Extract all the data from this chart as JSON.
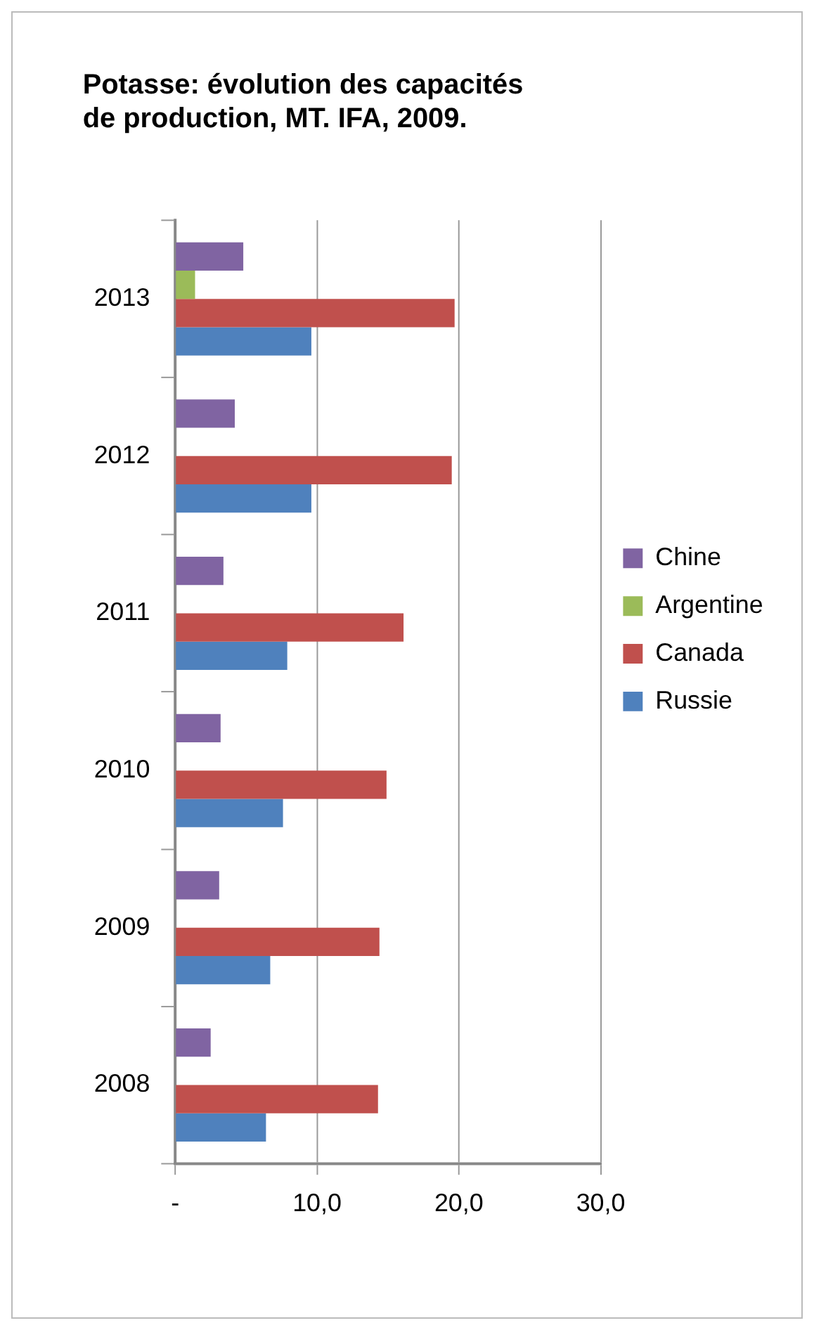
{
  "chart_data": {
    "type": "bar",
    "orientation": "horizontal",
    "title": "Potasse: évolution des capacités de production, MT. IFA, 2009.",
    "categories": [
      "2013",
      "2012",
      "2011",
      "2010",
      "2009",
      "2008"
    ],
    "series": [
      {
        "name": "Chine",
        "color": "#8064a2",
        "values": [
          4.8,
          4.2,
          3.4,
          3.2,
          3.1,
          2.5
        ]
      },
      {
        "name": "Argentine",
        "color": "#9bbb59",
        "values": [
          1.4,
          null,
          null,
          null,
          null,
          null
        ]
      },
      {
        "name": "Canada",
        "color": "#c0504d",
        "values": [
          19.7,
          19.5,
          16.1,
          14.9,
          14.4,
          14.3
        ]
      },
      {
        "name": "Russie",
        "color": "#4f81bd",
        "values": [
          9.6,
          9.6,
          7.9,
          7.6,
          6.7,
          6.4
        ]
      }
    ],
    "xlim": [
      0,
      30
    ],
    "xticks": [
      {
        "value": 0,
        "label": "-"
      },
      {
        "value": 10,
        "label": "10,0"
      },
      {
        "value": 20,
        "label": "20,0"
      },
      {
        "value": 30,
        "label": "30,0"
      }
    ],
    "grid": "x",
    "legend": "right"
  }
}
